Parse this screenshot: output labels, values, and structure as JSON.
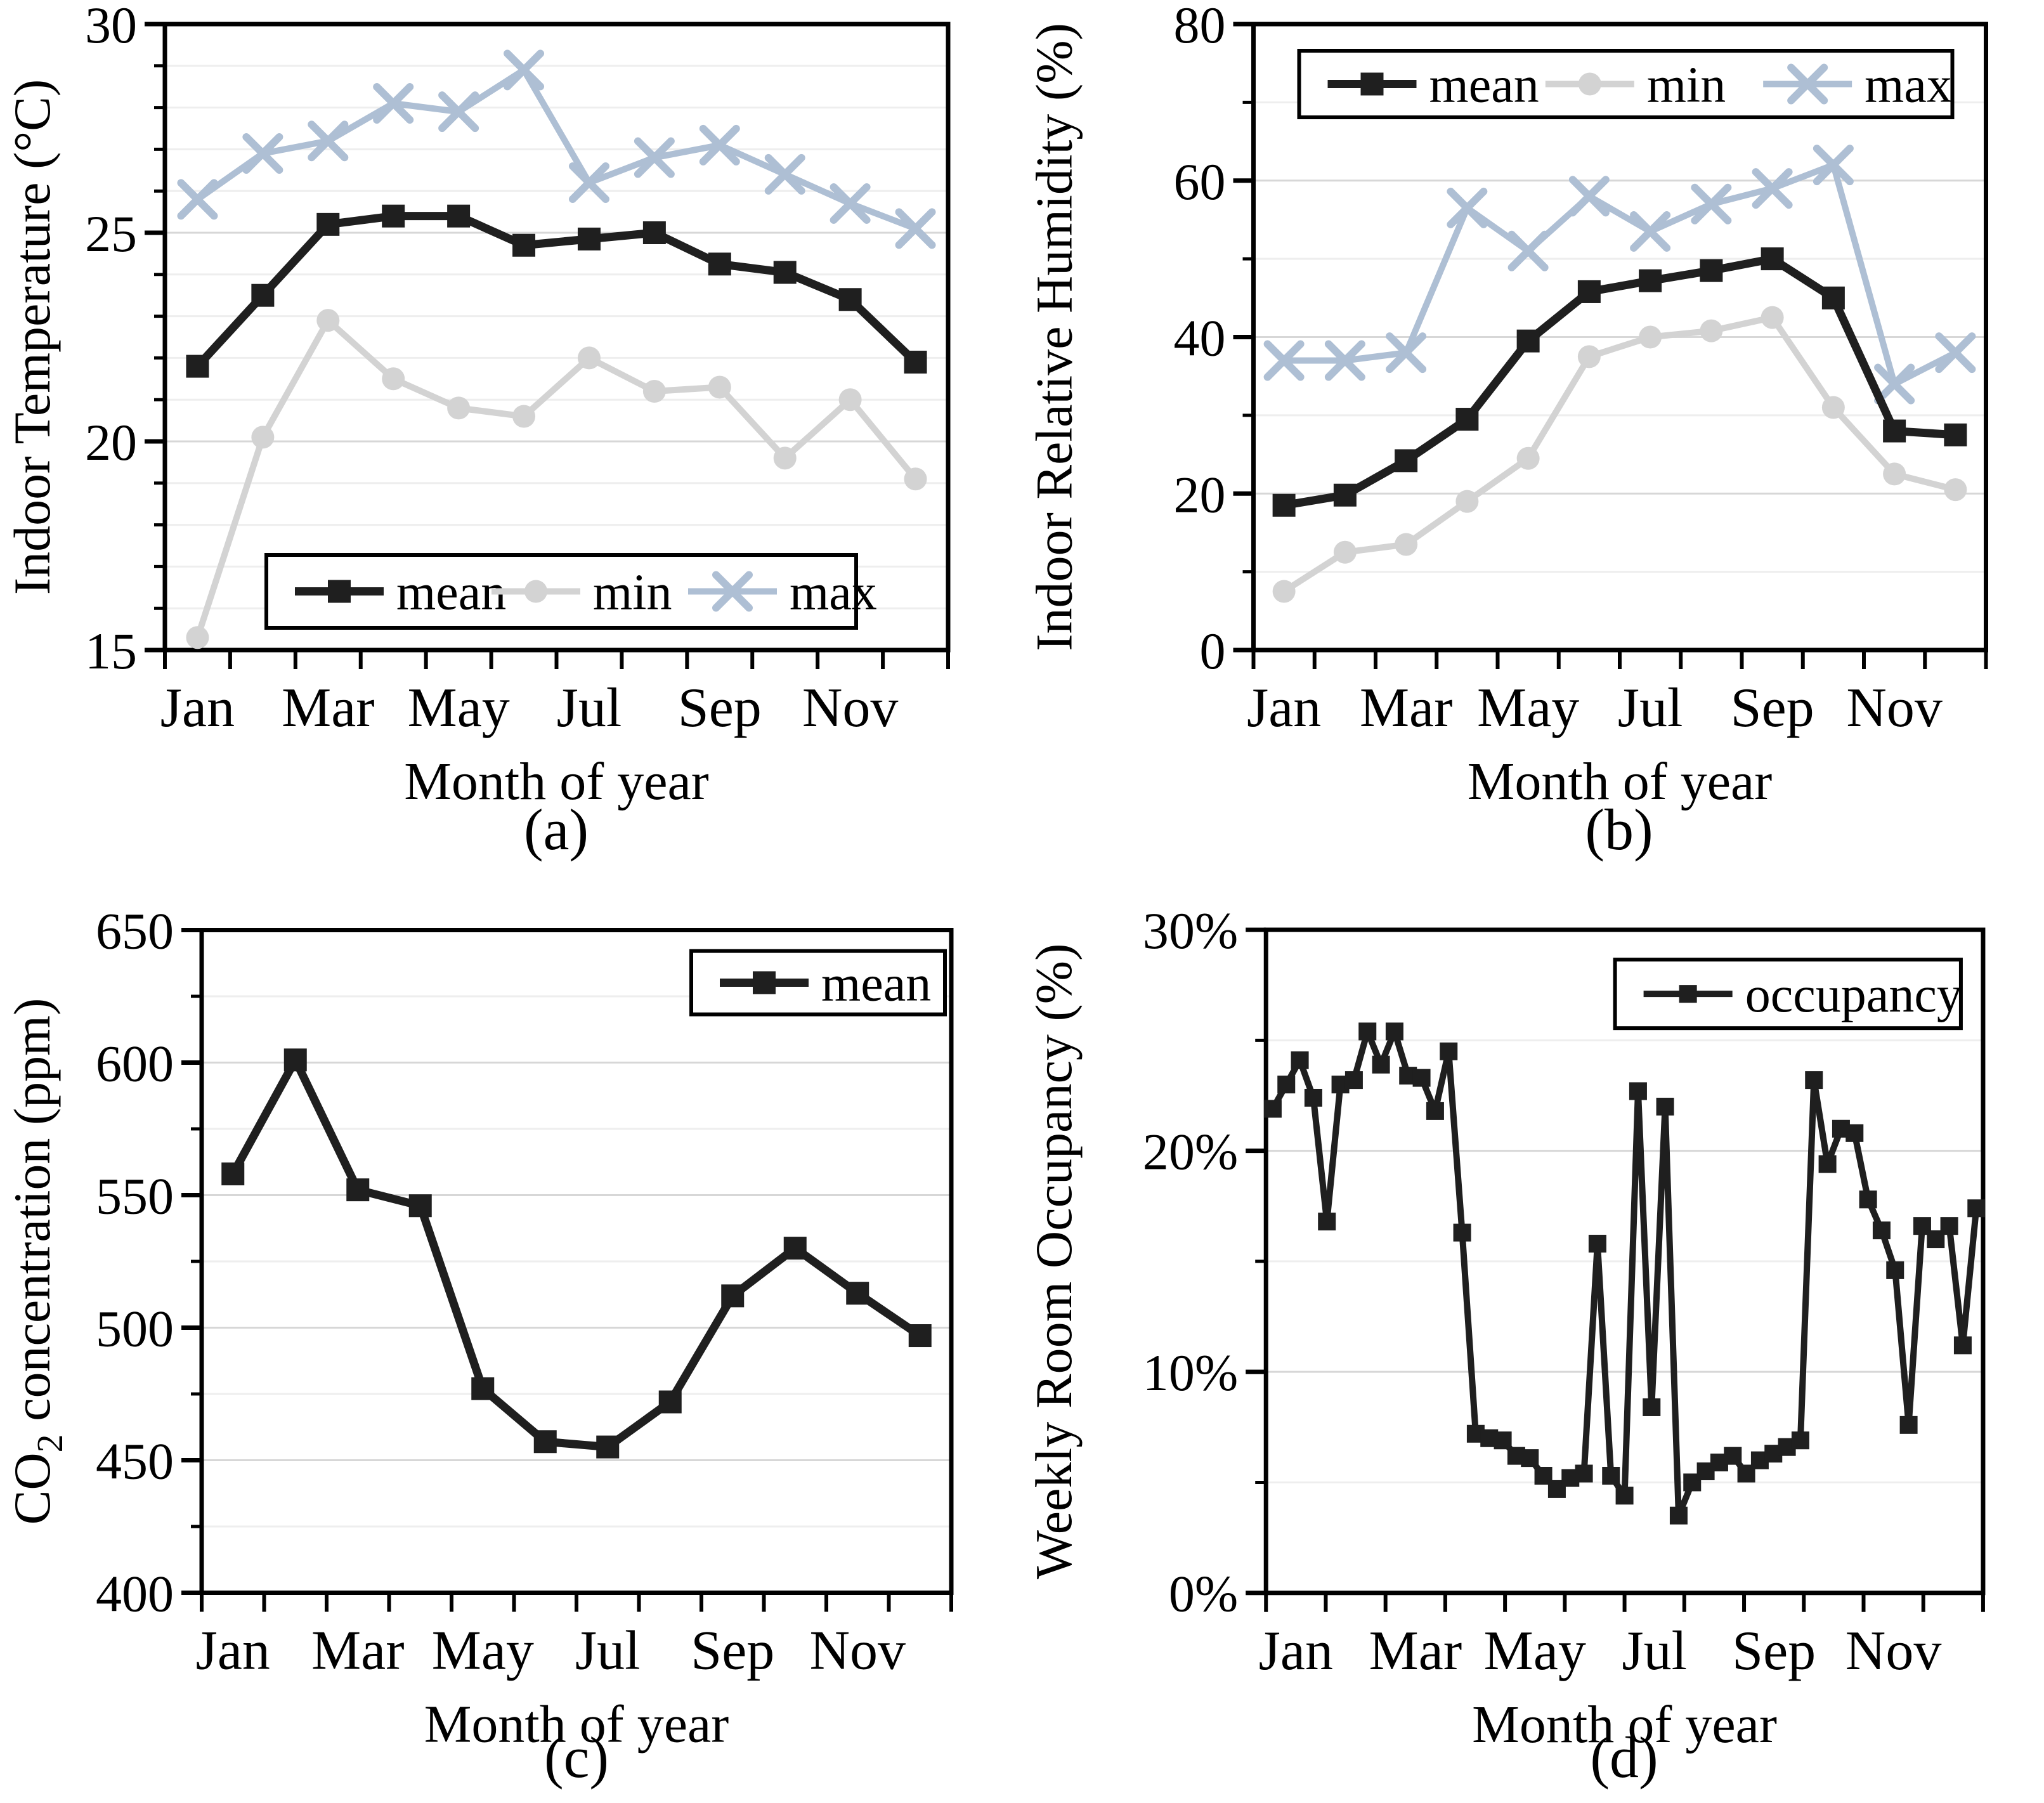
{
  "figure": {
    "captions": {
      "a": "(a)",
      "b": "(b)",
      "c": "(c)",
      "d": "(d)"
    }
  },
  "colors": {
    "mean": "#1f1f1f",
    "min": "#d3d3d3",
    "max": "#aebfd4",
    "grid_minor": "#eeeeee",
    "grid_major": "#d7d7d7",
    "axis": "#000000"
  },
  "chart_data": [
    {
      "id": "a",
      "type": "line",
      "caption": "(a)",
      "xlabel": "Month of year",
      "ylabel": "Indoor Temperature (°C)",
      "ylim": [
        15,
        30
      ],
      "ytick_step": 5,
      "yminor_step": 1,
      "ytick_labels": [
        "15",
        "20",
        "25",
        "30"
      ],
      "x_slots": 12,
      "x_tick_labels": [
        "Jan",
        "Mar",
        "May",
        "Jul",
        "Sep",
        "Nov"
      ],
      "grid": true,
      "legend_position": "bottom-center",
      "series": [
        {
          "name": "mean",
          "marker": "square",
          "color": "#1f1f1f",
          "values": [
            21.8,
            23.5,
            25.2,
            25.4,
            25.4,
            24.7,
            24.85,
            25.0,
            24.25,
            24.05,
            23.4,
            21.9
          ]
        },
        {
          "name": "min",
          "marker": "circle",
          "color": "#d3d3d3",
          "values": [
            15.3,
            20.1,
            22.9,
            21.5,
            20.8,
            20.6,
            22.0,
            21.2,
            21.3,
            19.6,
            21.0,
            19.1
          ]
        },
        {
          "name": "max",
          "marker": "x",
          "color": "#aebfd4",
          "values": [
            25.8,
            26.9,
            27.2,
            28.1,
            27.9,
            28.9,
            26.2,
            26.8,
            27.1,
            26.4,
            25.7,
            25.1
          ]
        }
      ]
    },
    {
      "id": "b",
      "type": "line",
      "caption": "(b)",
      "xlabel": "Month of year",
      "ylabel": "Indoor Relative Humidity (%)",
      "ylim": [
        0,
        80
      ],
      "ytick_step": 20,
      "yminor_step": 10,
      "ytick_labels": [
        "0",
        "20",
        "40",
        "60",
        "80"
      ],
      "x_slots": 12,
      "x_tick_labels": [
        "Jan",
        "Mar",
        "May",
        "Jul",
        "Sep",
        "Nov"
      ],
      "grid": true,
      "legend_position": "top-center",
      "series": [
        {
          "name": "mean",
          "marker": "square",
          "color": "#1f1f1f",
          "values": [
            18.5,
            19.8,
            24.2,
            29.5,
            39.5,
            45.8,
            47.2,
            48.5,
            50.0,
            45.0,
            28.0,
            27.5
          ]
        },
        {
          "name": "min",
          "marker": "circle",
          "color": "#d3d3d3",
          "values": [
            7.5,
            12.5,
            13.5,
            19.0,
            24.5,
            37.5,
            40.0,
            40.8,
            42.5,
            31.0,
            22.5,
            20.5
          ]
        },
        {
          "name": "max",
          "marker": "x",
          "color": "#aebfd4",
          "values": [
            37.0,
            37.0,
            38.0,
            56.5,
            51.0,
            58.0,
            53.5,
            57.0,
            59.0,
            62.0,
            34.0,
            38.0
          ]
        }
      ]
    },
    {
      "id": "c",
      "type": "line",
      "caption": "(c)",
      "xlabel": "Month of year",
      "ylabel": "CO2 concentration (ppm)",
      "ylabel_rich": [
        {
          "text": "CO"
        },
        {
          "text": "2",
          "sub": true
        },
        {
          "text": " concentration (ppm)"
        }
      ],
      "ylim": [
        400,
        650
      ],
      "ytick_step": 50,
      "yminor_step": 25,
      "ytick_labels": [
        "400",
        "450",
        "500",
        "550",
        "600",
        "650"
      ],
      "x_slots": 12,
      "x_tick_labels": [
        "Jan",
        "Mar",
        "May",
        "Jul",
        "Sep",
        "Nov"
      ],
      "grid": true,
      "legend_position": "top-right",
      "series": [
        {
          "name": "mean",
          "marker": "square",
          "color": "#1f1f1f",
          "values": [
            558,
            601,
            552,
            546,
            477,
            457,
            455,
            472,
            512,
            530,
            513,
            497
          ]
        }
      ]
    },
    {
      "id": "d",
      "type": "line",
      "caption": "(d)",
      "xlabel": "Month of year",
      "ylabel": "Weekly Room Occupancy (%)",
      "ylim": [
        0,
        30
      ],
      "ytick_step": 10,
      "yminor_step": 5,
      "ytick_labels": [
        "0%",
        "10%",
        "20%",
        "30%"
      ],
      "x_slots": 12,
      "x_tick_labels": [
        "Jan",
        "Mar",
        "May",
        "Jul",
        "Sep",
        "Nov"
      ],
      "grid": true,
      "legend_position": "top-right",
      "x_is_weekly": true,
      "series": [
        {
          "name": "occupancy",
          "marker": "square",
          "color": "#1f1f1f",
          "values": [
            21.9,
            23.0,
            24.1,
            22.4,
            16.8,
            23.0,
            23.2,
            25.4,
            23.9,
            25.4,
            23.4,
            23.3,
            21.8,
            24.5,
            16.3,
            7.2,
            7.0,
            6.9,
            6.2,
            6.1,
            5.3,
            4.7,
            5.2,
            5.4,
            15.8,
            5.3,
            4.4,
            22.7,
            8.4,
            22.0,
            3.5,
            5.0,
            5.5,
            5.9,
            6.2,
            5.4,
            6.0,
            6.3,
            6.6,
            6.9,
            23.2,
            19.4,
            21.0,
            20.8,
            17.8,
            16.4,
            14.6,
            7.6,
            16.6,
            16.0,
            16.6,
            11.2,
            17.4
          ]
        }
      ]
    }
  ]
}
